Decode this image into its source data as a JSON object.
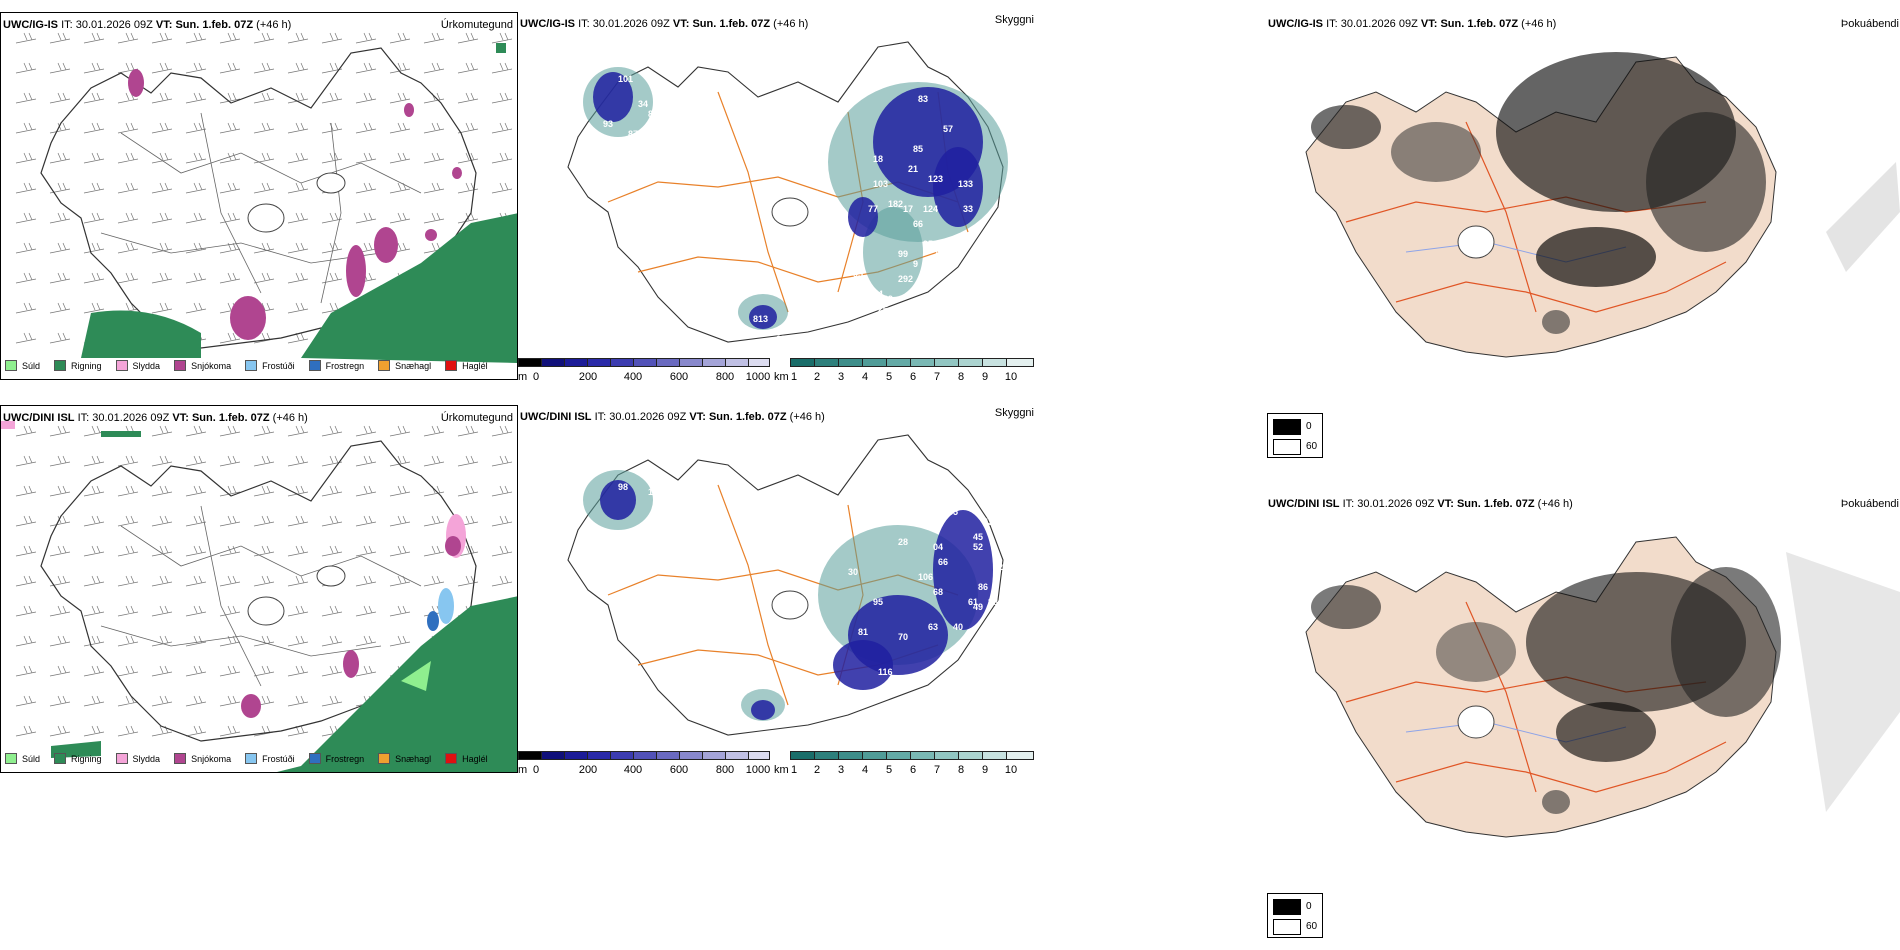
{
  "rows": [
    {
      "model": "UWC/IG-IS",
      "it_prefix": "IT:",
      "it_value": "30.01.2026 09Z",
      "vt_prefix": "VT:",
      "vt_value": "Sun. 1.feb. 07Z",
      "lead": "(+46 h)",
      "panels": {
        "precip_type": {
          "field_name": "Úrkomutegund"
        },
        "visibility": {
          "field_name": "Skyggni"
        },
        "fog": {
          "field_name": "Þokuábendi"
        }
      },
      "height_labels": [
        "22",
        "101",
        "34",
        "88",
        "93",
        "87",
        "84",
        "83",
        "57",
        "85",
        "18",
        "21",
        "123",
        "133",
        "103",
        "285",
        "77",
        "182",
        "17",
        "124",
        "33",
        "66",
        "95",
        "99",
        "219",
        "9",
        "95",
        "292",
        "34",
        "29",
        "26",
        "813",
        "62"
      ]
    },
    {
      "model": "UWC/DINI ISL",
      "it_prefix": "IT:",
      "it_value": "30.01.2026 09Z",
      "vt_prefix": "VT:",
      "vt_value": "Sun. 1.feb. 07Z",
      "lead": "(+46 h)",
      "panels": {
        "precip_type": {
          "field_name": "Úrkomutegund"
        },
        "visibility": {
          "field_name": "Skyggni"
        },
        "fog": {
          "field_name": "Þokuábendi"
        }
      },
      "height_labels": [
        "98",
        "19",
        "12",
        "16",
        "46",
        "55",
        "53",
        "45",
        "52",
        "28",
        "04",
        "66",
        "42",
        "30",
        "106",
        "86",
        "88",
        "68",
        "49",
        "95",
        "63",
        "40",
        "81",
        "70",
        "116",
        "61",
        "83"
      ]
    }
  ],
  "precip_legend": [
    {
      "label": "Súld",
      "color": "#8fef8f"
    },
    {
      "label": "Rigning",
      "color": "#2e8b57"
    },
    {
      "label": "Slydda",
      "color": "#f4a4d8"
    },
    {
      "label": "Snjókoma",
      "color": "#b04590"
    },
    {
      "label": "Frostúði",
      "color": "#87c6f0"
    },
    {
      "label": "Frostregn",
      "color": "#2f6fbf"
    },
    {
      "label": "Snæhagl",
      "color": "#f0a030"
    },
    {
      "label": "Haglél",
      "color": "#e01010"
    }
  ],
  "cloud_base_colorbar": {
    "unit": "m",
    "ticks": [
      "0",
      "200",
      "400",
      "600",
      "800",
      "1000"
    ],
    "colors": [
      "#000000",
      "#10107a",
      "#1c1c98",
      "#2a2aa8",
      "#3c3cb0",
      "#5252b8",
      "#6a6ac0",
      "#8888cc",
      "#a4a4d8",
      "#c0c0e4",
      "#dcdcf0"
    ]
  },
  "visibility_colorbar": {
    "unit": "km",
    "ticks": [
      "1",
      "2",
      "3",
      "4",
      "5",
      "6",
      "7",
      "8",
      "9",
      "10"
    ],
    "colors": [
      "#1a6e6a",
      "#2e807c",
      "#3e8e8a",
      "#509c98",
      "#64aaa6",
      "#7ab8b4",
      "#92c6c2",
      "#acd4d0",
      "#c8e2e0",
      "#e4f0ef"
    ]
  },
  "fog_legend": {
    "values": [
      "0",
      "60"
    ],
    "colors": [
      "#000000",
      "#ffffff"
    ]
  },
  "map_colors": {
    "land_fog_panel": "#f2dccb",
    "road": "#e8812a",
    "road_fog": "#e05525",
    "river": "#8ea4e8",
    "coast": "#333333",
    "contour": "#555555"
  }
}
